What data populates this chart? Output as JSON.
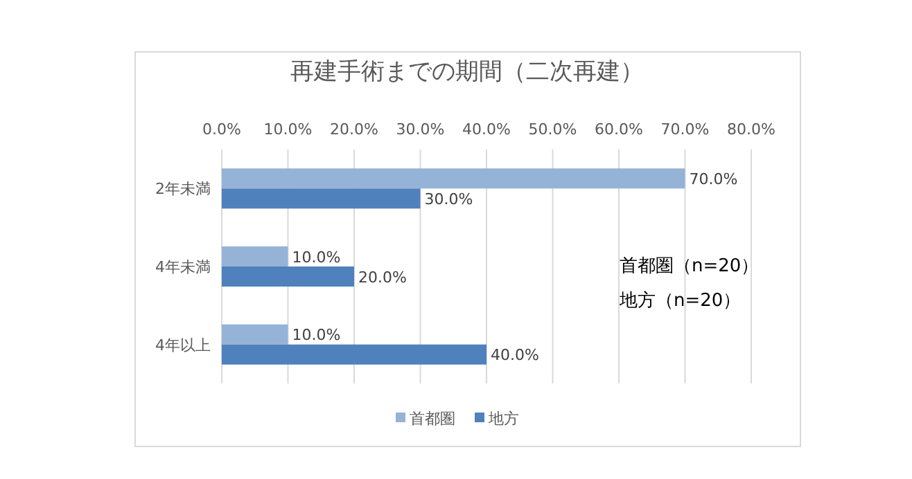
{
  "chart_data": {
    "type": "bar",
    "orientation": "horizontal",
    "title": "再建手術までの期間（二次再建）",
    "categories": [
      "2年未満",
      "4年未満",
      "4年以上"
    ],
    "series": [
      {
        "name": "首都圏",
        "color": "#95b3d7",
        "values": [
          70,
          10,
          10
        ],
        "value_labels": [
          "70.0%",
          "10.0%",
          "10.0%"
        ]
      },
      {
        "name": "地方",
        "color": "#4f81bd",
        "values": [
          30,
          20,
          40
        ],
        "value_labels": [
          "30.0%",
          "20.0%",
          "40.0%"
        ]
      }
    ],
    "xlim": [
      0,
      80
    ],
    "xticks": [
      {
        "value": 0,
        "label": "0.0%"
      },
      {
        "value": 10,
        "label": "10.0%"
      },
      {
        "value": 20,
        "label": "20.0%"
      },
      {
        "value": 30,
        "label": "30.0%"
      },
      {
        "value": 40,
        "label": "40.0%"
      },
      {
        "value": 50,
        "label": "50.0%"
      },
      {
        "value": 60,
        "label": "60.0%"
      },
      {
        "value": 70,
        "label": "70.0%"
      },
      {
        "value": 80,
        "label": "80.0%"
      }
    ],
    "grid": "x",
    "legend": "bottom",
    "annotations": [
      "首都圏（n=20）",
      "地方（n=20）"
    ]
  }
}
